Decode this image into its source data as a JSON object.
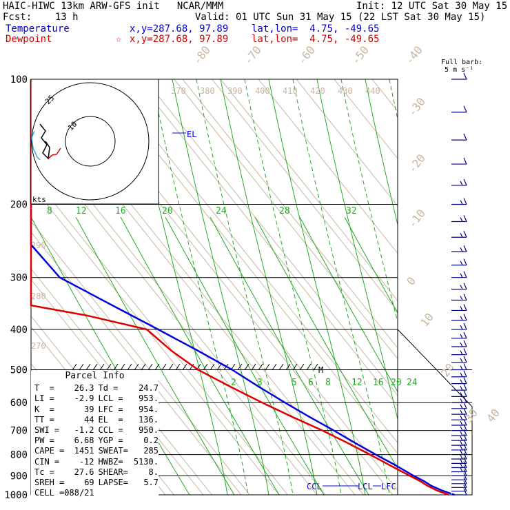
{
  "header": {
    "line1_left": "HAIC-HIWC 13km ARW-GFS init   NCAR/MMM",
    "line1_right": "Init: 12 UTC Sat 30 May 15",
    "line2_left": "Fcst:    13 h",
    "line2_right": "Valid: 01 UTC Sun 31 May 15 (22 LST Sat 30 May 15)",
    "temp_label": "Temperature",
    "temp_info": "x,y=287.68, 97.89    lat,lon=  4.75, -49.65",
    "dew_label": "Dewpoint",
    "dew_star": "☆",
    "dew_info": "x,y=287.68, 97.89    lat,lon=  4.75, -49.65"
  },
  "barb_legend": {
    "line1": "Full barb:",
    "line2": "5 m s⁻¹"
  },
  "hodograph": {
    "ring_labels": [
      "10",
      "25"
    ],
    "units": "kts"
  },
  "parcel": {
    "title": "Parcel  Info",
    "rows": [
      [
        "T  =",
        "26.3",
        "Td =",
        "24.7"
      ],
      [
        "LI =",
        "-2.9",
        "LCL =",
        "953."
      ],
      [
        "K  =",
        "39",
        "LFC =",
        "954."
      ],
      [
        "TT =",
        "44",
        "EL  =",
        "136."
      ],
      [
        "SWI =",
        "-1.2",
        "CCL =",
        "950."
      ],
      [
        "PW =",
        "6.68",
        "YGP =",
        "0.2"
      ],
      [
        "CAPE =",
        "1451",
        "SWEAT=",
        "285"
      ],
      [
        "CIN =",
        "-12",
        "HWBZ=",
        "5130."
      ],
      [
        "Tc =",
        "27.6",
        "SHEAR=",
        "8."
      ],
      [
        "SREH =",
        "69",
        "LAPSE=",
        "5.7"
      ],
      [
        "CELL =",
        "088/21",
        "",
        ""
      ]
    ]
  },
  "colors": {
    "temperature": "#0000dd",
    "dewpoint": "#dd0000",
    "isotherm": "#c8b4a0",
    "mixing_ratio": "#22aa22",
    "isobar": "#000000",
    "barb": "#000080",
    "hodo_temp": "#000000",
    "hodo_dew": "#dd0000",
    "hodo_cyan": "#33aadd"
  },
  "chart_data": {
    "type": "line",
    "title": "",
    "xlabel": "",
    "ylabel": "",
    "pressure_ticks": [
      "100",
      "200",
      "300",
      "400",
      "500",
      "600",
      "700",
      "800",
      "900",
      "1000"
    ],
    "isotherm_labels": [
      "-80",
      "-70",
      "-60",
      "-50",
      "-40",
      "-30",
      "-20",
      "-10",
      "0",
      "10",
      "20",
      "30",
      "40"
    ],
    "theta_labels": [
      "370",
      "380",
      "390",
      "400",
      "410",
      "420",
      "430",
      "440",
      "290",
      "280",
      "270"
    ],
    "mixing_ratio_labels_upper": [
      "8",
      "12",
      "16",
      "20",
      "24",
      "28",
      "32"
    ],
    "mixing_ratio_labels_lower": [
      "2",
      "3",
      "5",
      "6",
      "8",
      "12",
      "16",
      "20",
      "24"
    ],
    "level_markers": [
      "EL",
      "CCL",
      "LCL",
      "LFC",
      "M"
    ],
    "series": [
      {
        "name": "Temperature",
        "points": [
          [
            1000,
            26.3
          ],
          [
            975,
            23.8
          ],
          [
            950,
            22
          ],
          [
            925,
            21
          ],
          [
            900,
            19.5
          ],
          [
            850,
            17
          ],
          [
            800,
            14
          ],
          [
            750,
            11
          ],
          [
            700,
            8
          ],
          [
            650,
            4.5
          ],
          [
            600,
            1
          ],
          [
            550,
            -2.5
          ],
          [
            500,
            -6
          ],
          [
            450,
            -11
          ],
          [
            400,
            -17
          ],
          [
            350,
            -24
          ],
          [
            300,
            -32
          ],
          [
            250,
            -41
          ],
          [
            200,
            -52
          ],
          [
            175,
            -59
          ],
          [
            150,
            -67
          ],
          [
            136,
            -72
          ],
          [
            125,
            -76
          ],
          [
            110,
            -78
          ],
          [
            100,
            -76
          ]
        ]
      },
      {
        "name": "Dewpoint",
        "points": [
          [
            1000,
            24.7
          ],
          [
            975,
            22.5
          ],
          [
            950,
            21
          ],
          [
            925,
            20
          ],
          [
            900,
            18.5
          ],
          [
            850,
            15.5
          ],
          [
            800,
            12.5
          ],
          [
            750,
            9
          ],
          [
            700,
            5
          ],
          [
            650,
            0
          ],
          [
            600,
            -5
          ],
          [
            550,
            -10
          ],
          [
            500,
            -15
          ],
          [
            450,
            -18
          ],
          [
            400,
            -20
          ],
          [
            370,
            -33
          ],
          [
            350,
            -46
          ],
          [
            300,
            -48
          ],
          [
            250,
            -50
          ],
          [
            200,
            -60
          ],
          [
            175,
            -64
          ],
          [
            150,
            -67
          ],
          [
            125,
            -62
          ],
          [
            110,
            -58
          ],
          [
            100,
            -52
          ]
        ]
      }
    ],
    "wind_barbs_pressure": [
      100,
      120,
      140,
      160,
      180,
      200,
      220,
      240,
      260,
      280,
      300,
      320,
      340,
      360,
      380,
      400,
      420,
      440,
      460,
      480,
      500,
      520,
      540,
      560,
      580,
      600,
      620,
      640,
      660,
      680,
      700,
      720,
      740,
      760,
      780,
      800,
      820,
      840,
      860,
      880,
      900,
      920,
      940,
      960,
      980,
      1000
    ]
  }
}
